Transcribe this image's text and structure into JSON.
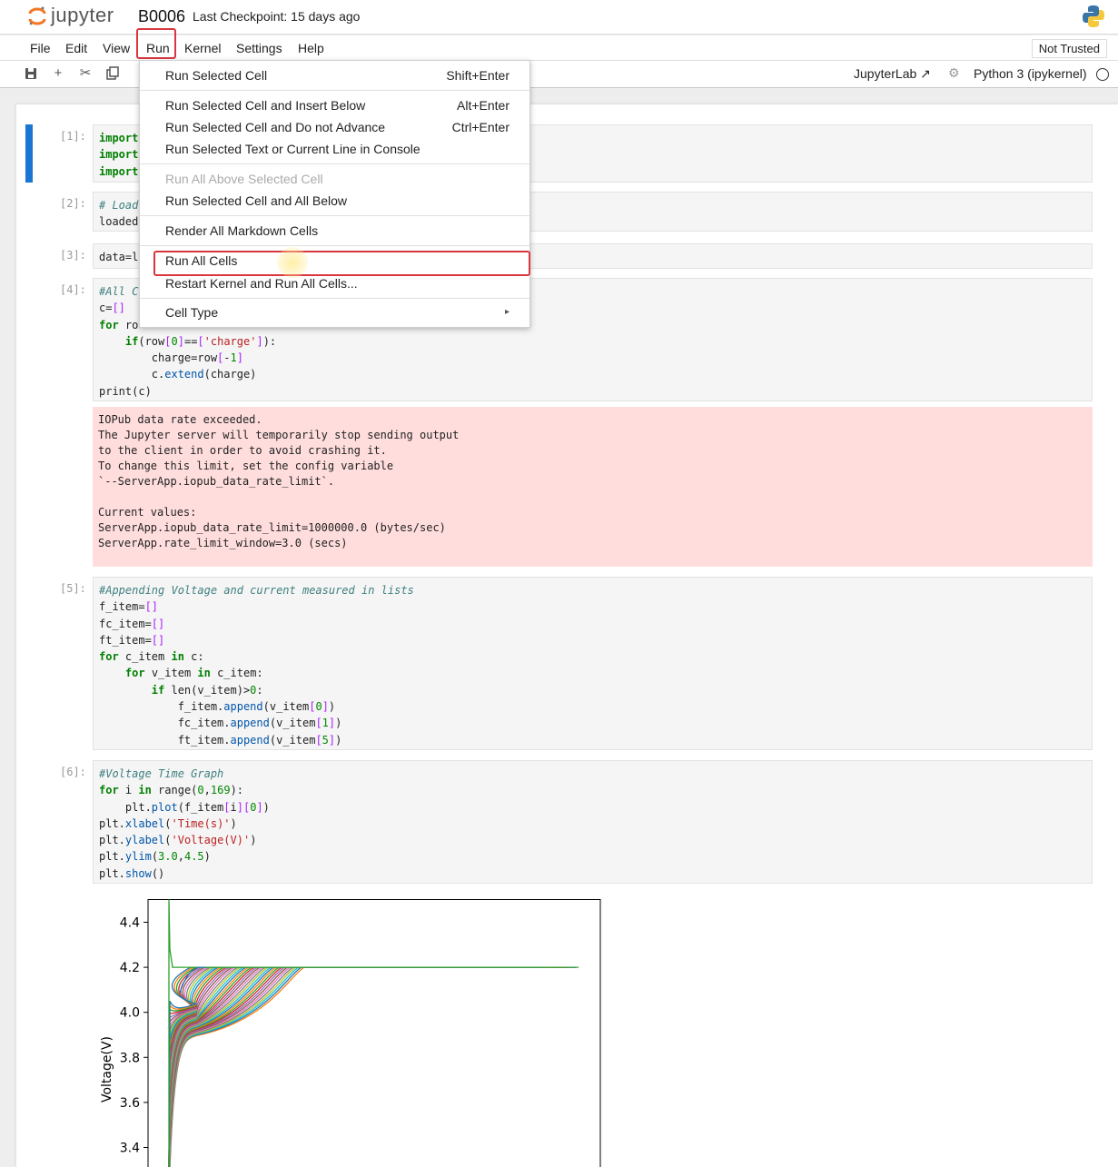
{
  "header": {
    "app_name": "jupyter",
    "notebook_name": "B0006",
    "checkpoint": "Last Checkpoint: 15 days ago"
  },
  "menubar": {
    "items": [
      "File",
      "Edit",
      "View",
      "Run",
      "Kernel",
      "Settings",
      "Help"
    ],
    "trust_status": "Not Trusted"
  },
  "toolbar": {
    "jupyterlab_label": "JupyterLab",
    "kernel_name": "Python 3 (ipykernel)"
  },
  "run_menu": {
    "items": [
      {
        "label": "Run Selected Cell",
        "shortcut": "Shift+Enter",
        "enabled": true
      },
      {
        "label": "Run Selected Cell and Insert Below",
        "shortcut": "Alt+Enter",
        "enabled": true
      },
      {
        "label": "Run Selected Cell and Do not Advance",
        "shortcut": "Ctrl+Enter",
        "enabled": true
      },
      {
        "label": "Run Selected Text or Current Line in Console",
        "shortcut": "",
        "enabled": true
      },
      {
        "label": "Run All Above Selected Cell",
        "shortcut": "",
        "enabled": false
      },
      {
        "label": "Run Selected Cell and All Below",
        "shortcut": "",
        "enabled": true
      },
      {
        "label": "Render All Markdown Cells",
        "shortcut": "",
        "enabled": true
      },
      {
        "label": "Run All Cells",
        "shortcut": "",
        "enabled": true
      },
      {
        "label": "Restart Kernel and Run All Cells...",
        "shortcut": "",
        "enabled": true
      },
      {
        "label": "Cell Type",
        "shortcut": "▸",
        "enabled": true
      }
    ]
  },
  "cells": {
    "c1": {
      "prompt": "[1]:"
    },
    "c2": {
      "prompt": "[2]:"
    },
    "c3": {
      "prompt": "[3]:"
    },
    "c4": {
      "prompt": "[4]:"
    },
    "c5": {
      "prompt": "[5]:"
    },
    "c6": {
      "prompt": "[6]:"
    }
  },
  "error_output": "IOPub data rate exceeded.\nThe Jupyter server will temporarily stop sending output\nto the client in order to avoid crashing it.\nTo change this limit, set the config variable\n`--ServerApp.iopub_data_rate_limit`.\n\nCurrent values:\nServerApp.iopub_data_rate_limit=1000000.0 (bytes/sec)\nServerApp.rate_limit_window=3.0 (secs)",
  "chart_data": {
    "type": "line",
    "title": "",
    "xlabel": "",
    "ylabel": "Voltage(V)",
    "ylim": [
      3.3,
      4.5
    ],
    "yticks": [
      "3.4",
      "3.6",
      "3.8",
      "4.0",
      "4.2",
      "4.4"
    ],
    "series_count": 169,
    "plateau_value": 4.2,
    "start_range": [
      3.3,
      4.05
    ],
    "note_visible": "many overlapping charge curves rising to 4.2"
  }
}
